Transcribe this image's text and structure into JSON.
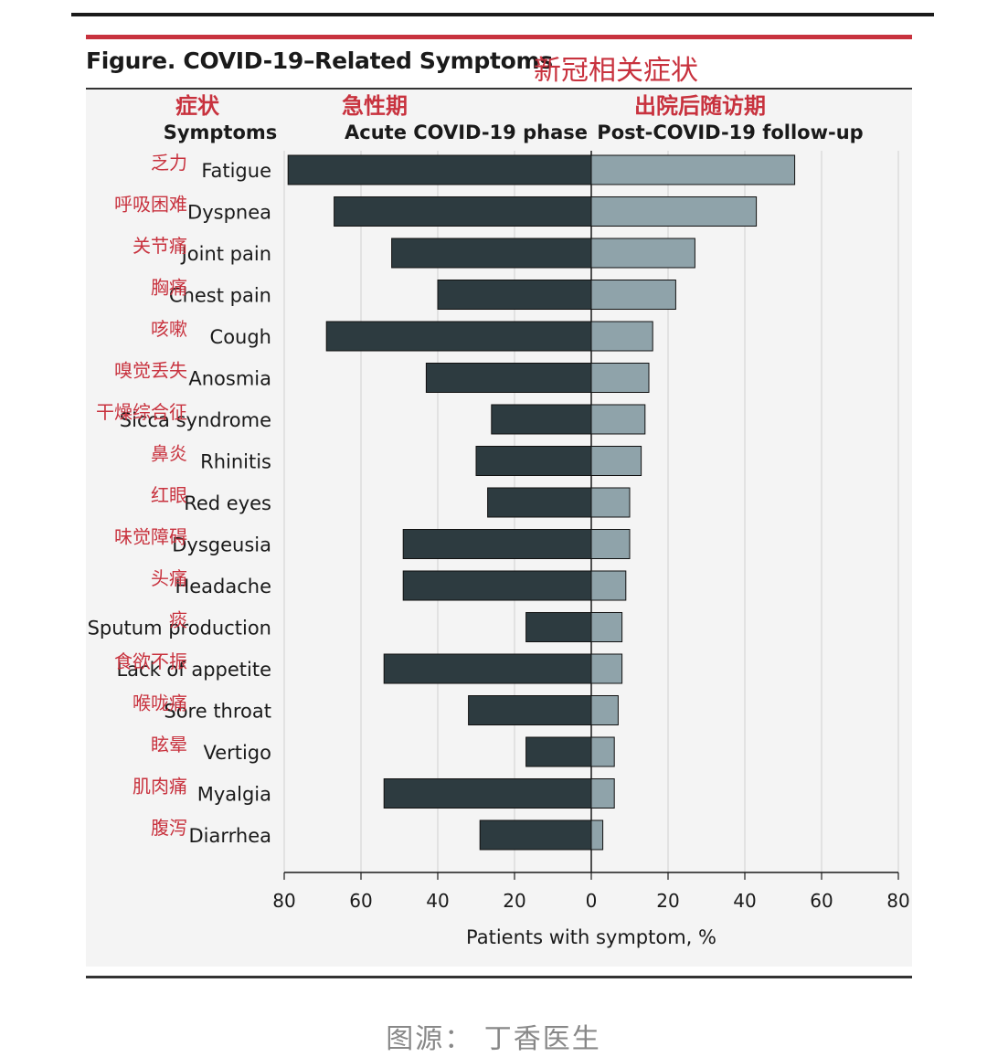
{
  "title": "Figure. COVID-19–Related Symptoms",
  "title_cn": "新冠相关症状",
  "source": "图源： 丁香医生",
  "colors": {
    "accent": "#c8323e",
    "acute_bar": "#2d3b40",
    "post_bar": "#8fa3aa"
  },
  "chart_data": {
    "type": "bar",
    "orientation": "horizontal-back-to-back",
    "headers": {
      "symptoms": "Symptoms",
      "symptoms_cn": "症状",
      "acute": "Acute COVID-19 phase",
      "acute_cn": "急性期",
      "post": "Post-COVID-19 follow-up",
      "post_cn": "出院后随访期"
    },
    "categories": [
      "Fatigue",
      "Dyspnea",
      "Joint pain",
      "Chest pain",
      "Cough",
      "Anosmia",
      "Sicca syndrome",
      "Rhinitis",
      "Red eyes",
      "Dysgeusia",
      "Headache",
      "Sputum production",
      "Lack of appetite",
      "Sore throat",
      "Vertigo",
      "Myalgia",
      "Diarrhea"
    ],
    "categories_cn": [
      "乏力",
      "呼吸困难",
      "关节痛",
      "胸痛",
      "咳嗽",
      "嗅觉丢失",
      "干燥综合征",
      "鼻炎",
      "红眼",
      "味觉障碍",
      "头痛",
      "痰",
      "食欲不振",
      "喉咙痛",
      "眩晕",
      "肌肉痛",
      "腹泻"
    ],
    "series": [
      {
        "name": "Acute COVID-19 phase",
        "values": [
          79,
          67,
          52,
          40,
          69,
          43,
          26,
          30,
          27,
          49,
          49,
          17,
          54,
          32,
          17,
          54,
          29
        ]
      },
      {
        "name": "Post-COVID-19 follow-up",
        "values": [
          53,
          43,
          27,
          22,
          16,
          15,
          14,
          13,
          10,
          10,
          9,
          8,
          8,
          7,
          6,
          6,
          3
        ]
      }
    ],
    "x_ticks": [
      "80",
      "60",
      "40",
      "20",
      "0",
      "20",
      "40",
      "60",
      "80"
    ],
    "xlim": [
      -80,
      80
    ],
    "xlabel": "Patients with symptom, %",
    "grid": true
  }
}
